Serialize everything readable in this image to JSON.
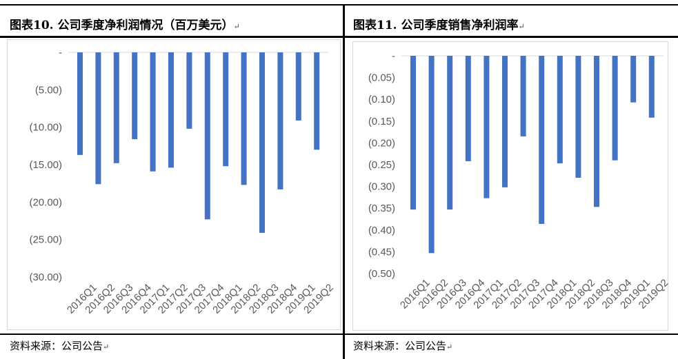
{
  "panels": [
    {
      "title": "图表10.  公司季度净利润情况（百万美元）",
      "source": "资料来源：公司公告",
      "mark": "↵"
    },
    {
      "title": "图表11.  公司季度销售净利润率",
      "source": "资料来源：公司公告",
      "mark": "↵"
    }
  ],
  "colors": {
    "bar": "#4472C4",
    "axis": "#D9D9D9",
    "border": "#D9D9D9",
    "text": "#595959"
  },
  "chart_data": [
    {
      "type": "bar",
      "title": "",
      "xlabel": "",
      "ylabel": "",
      "categories": [
        "2016Q1",
        "2016Q2",
        "2016Q3",
        "2016Q4",
        "2017Q1",
        "2017Q2",
        "2017Q3",
        "2017Q4",
        "2018Q1",
        "2018Q2",
        "2018Q3",
        "2018Q4",
        "2019Q1",
        "2019Q2"
      ],
      "values": [
        -13.7,
        -17.6,
        -14.8,
        -11.6,
        -15.9,
        -15.4,
        -10.2,
        -22.3,
        -15.2,
        -17.7,
        -24.1,
        -18.3,
        -9.1,
        -13.0
      ],
      "ylim": [
        -30,
        0
      ],
      "yticks": [
        "-",
        "(5.00)",
        "(10.00)",
        "(15.00)",
        "(20.00)",
        "(25.00)",
        "(30.00)"
      ],
      "grid": false,
      "legend": "none"
    },
    {
      "type": "bar",
      "title": "",
      "xlabel": "",
      "ylabel": "",
      "categories": [
        "2016Q1",
        "2016Q2",
        "2016Q3",
        "2016Q4",
        "2017Q1",
        "2017Q2",
        "2017Q3",
        "2017Q4",
        "2018Q1",
        "2018Q2",
        "2018Q3",
        "2018Q4",
        "2019Q1",
        "2019Q2"
      ],
      "values": [
        -0.353,
        -0.453,
        -0.353,
        -0.242,
        -0.327,
        -0.302,
        -0.185,
        -0.386,
        -0.247,
        -0.28,
        -0.347,
        -0.24,
        -0.107,
        -0.142
      ],
      "ylim": [
        -0.5,
        0
      ],
      "yticks": [
        "-",
        "(0.05)",
        "(0.10)",
        "(0.15)",
        "(0.20)",
        "(0.25)",
        "(0.30)",
        "(0.35)",
        "(0.40)",
        "(0.45)",
        "(0.50)"
      ],
      "grid": false,
      "legend": "none"
    }
  ]
}
